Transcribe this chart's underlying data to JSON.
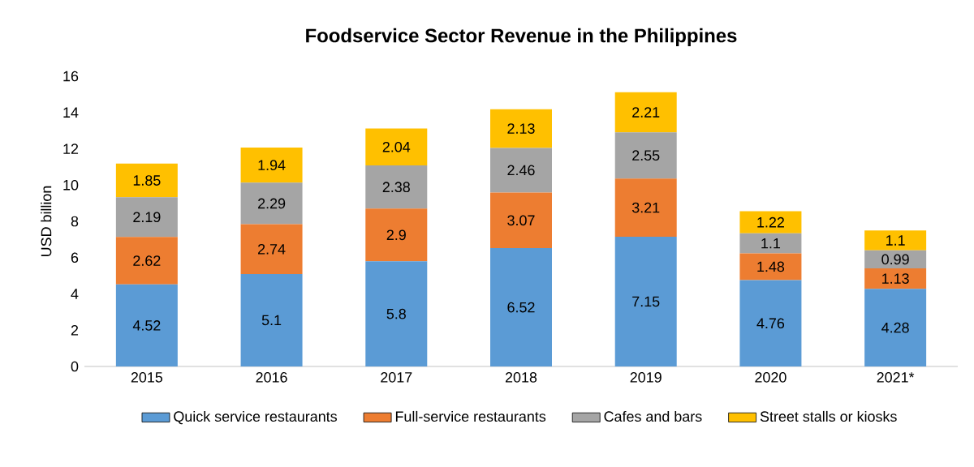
{
  "chart_data": {
    "type": "bar",
    "title": "Foodservice Sector Revenue in the Philippines",
    "ylabel": "USD billion",
    "categories": [
      "2015",
      "2016",
      "2017",
      "2018",
      "2019",
      "2020",
      "2021*"
    ],
    "stacked": true,
    "series": [
      {
        "name": "Quick service restaurants",
        "color": "#5b9bd5",
        "values": [
          4.52,
          5.1,
          5.8,
          6.52,
          7.15,
          4.76,
          4.28
        ]
      },
      {
        "name": "Full-service restaurants",
        "color": "#ed7d31",
        "values": [
          2.62,
          2.74,
          2.9,
          3.07,
          3.21,
          1.48,
          1.13
        ]
      },
      {
        "name": "Cafes and bars",
        "color": "#a5a5a5",
        "values": [
          2.19,
          2.29,
          2.38,
          2.46,
          2.55,
          1.1,
          0.99
        ]
      },
      {
        "name": "Street stalls or kiosks",
        "color": "#ffc000",
        "values": [
          1.85,
          1.94,
          2.04,
          2.13,
          2.21,
          1.22,
          1.1
        ]
      }
    ],
    "ylim": [
      0,
      16
    ],
    "yticks": [
      0,
      2,
      4,
      6,
      8,
      10,
      12,
      14,
      16
    ],
    "data_labels": true,
    "legend": "bottom",
    "grid": false
  }
}
